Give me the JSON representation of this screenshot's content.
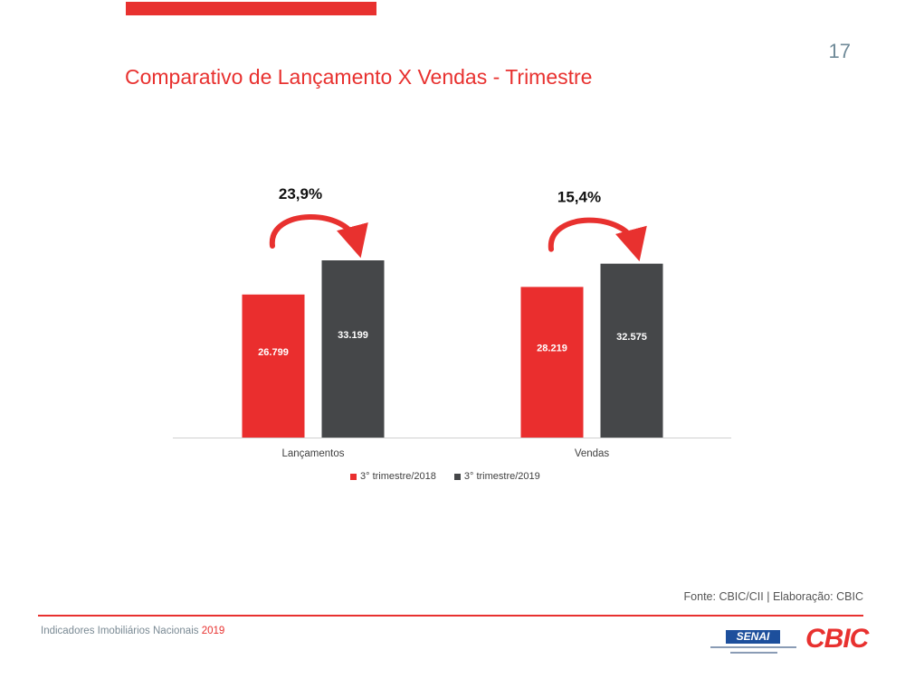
{
  "page": {
    "number": "17",
    "title": "Comparativo de Lançamento X Vendas - Trimestre",
    "source": "Fonte: CBIC/CII | Elaboração: CBIC",
    "footer_text": "Indicadores Imobiliários Nacionais",
    "footer_year": "2019",
    "senai_logo_text": "SENAI",
    "cbic_logo_text": "CBIC"
  },
  "colors": {
    "accent": "#e8312f",
    "series_2018": "#ea2e2e",
    "series_2019": "#454749"
  },
  "chart_data": {
    "type": "bar",
    "categories": [
      "Lançamentos",
      "Vendas"
    ],
    "series": [
      {
        "name": "3° trimestre/2018",
        "values": [
          26799,
          28219
        ],
        "labels": [
          "26.799",
          "28.219"
        ]
      },
      {
        "name": "3° trimestre/2019",
        "values": [
          33199,
          32575
        ],
        "labels": [
          "33.199",
          "32.575"
        ]
      }
    ],
    "changes": [
      "23,9%",
      "15,4%"
    ],
    "legend": "bottom",
    "grid": false
  }
}
